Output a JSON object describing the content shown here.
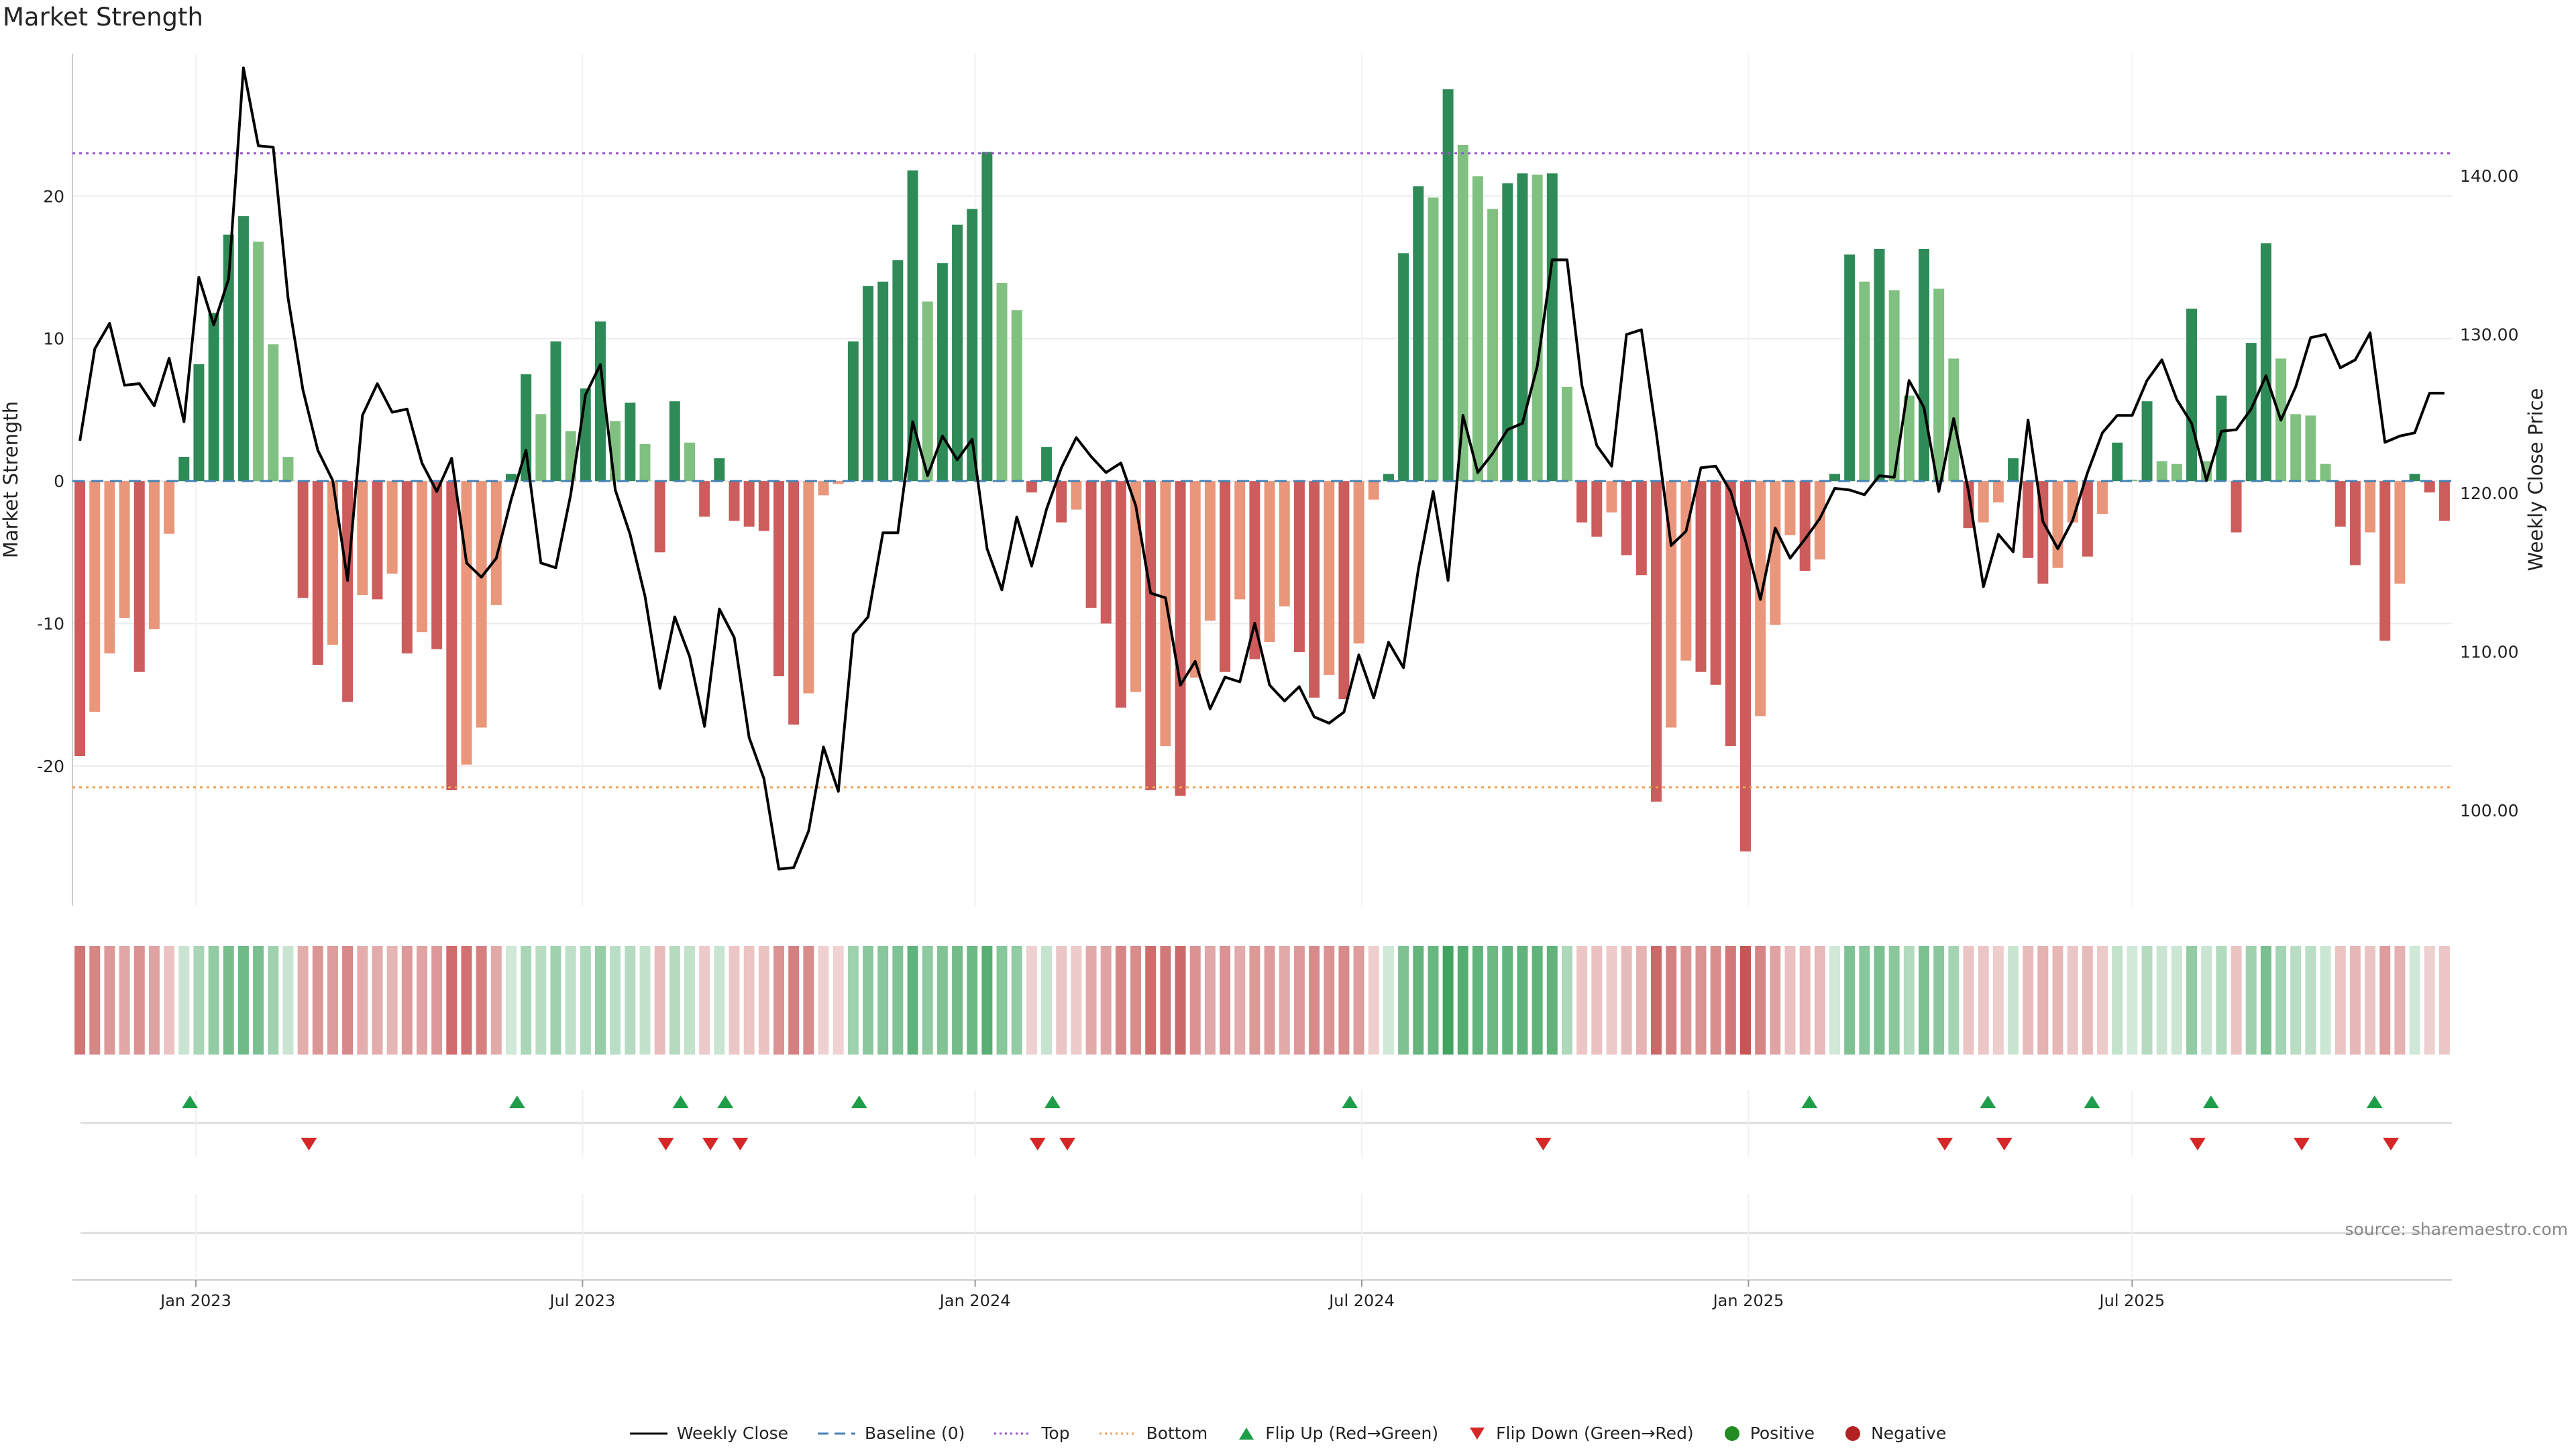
{
  "chart_data": {
    "type": "bar",
    "title": "Market Strength",
    "ylabel_left": "Market Strength",
    "ylabel_right": "Weekly Close Price",
    "source": "source: sharemaestro.com",
    "ylim_left": [
      -29.8,
      30
    ],
    "ylim_right": [
      94,
      147.7
    ],
    "left_ticks": [
      20,
      10,
      0,
      -10,
      -20
    ],
    "left_tick_labels": [
      "20",
      "10",
      "0",
      "-10",
      "-20"
    ],
    "right_ticks": [
      140,
      130,
      120,
      110,
      100
    ],
    "right_tick_labels": [
      "140.00",
      "130.00",
      "120.00",
      "110.00",
      "100.00"
    ],
    "top_line": 23.0,
    "bottom_line": -21.5,
    "baseline": 0,
    "x_tick_labels": [
      "Jan 2023",
      "Jul 2023",
      "Jan 2024",
      "Jul 2024",
      "Jan 2025",
      "Jul 2025"
    ],
    "x_tick_weeks": [
      7.8,
      33.8,
      60.2,
      86.2,
      112.2,
      138.0
    ],
    "strength": [
      -19.3,
      -16.2,
      -12.1,
      -9.6,
      -13.4,
      -10.4,
      -3.7,
      1.7,
      8.2,
      11.8,
      17.3,
      18.6,
      16.8,
      9.6,
      1.7,
      -8.2,
      -12.9,
      -11.5,
      -15.5,
      -8.0,
      -8.3,
      -6.5,
      -12.1,
      -10.6,
      -11.8,
      -21.7,
      -19.9,
      -17.3,
      -8.7,
      0.5,
      7.5,
      4.7,
      9.8,
      3.5,
      6.5,
      11.2,
      4.2,
      5.5,
      2.6,
      -5.0,
      5.6,
      2.7,
      -2.5,
      1.6,
      -2.8,
      -3.2,
      -3.5,
      -13.7,
      -17.1,
      -14.9,
      -1.0,
      -0.2,
      9.8,
      13.7,
      14.0,
      15.5,
      21.8,
      12.6,
      15.3,
      18.0,
      19.1,
      23.1,
      13.9,
      12.0,
      -0.8,
      2.4,
      -2.9,
      -2.0,
      -8.9,
      -10.0,
      -15.9,
      -14.8,
      -21.7,
      -18.6,
      -22.1,
      -13.8,
      -9.8,
      -13.4,
      -8.3,
      -12.5,
      -11.3,
      -8.8,
      -12.0,
      -15.2,
      -13.6,
      -15.3,
      -11.4,
      -1.3,
      0.5,
      16.0,
      20.7,
      19.9,
      27.5,
      23.6,
      21.4,
      19.1,
      20.9,
      21.6,
      21.5,
      21.6,
      6.6,
      -2.9,
      -3.9,
      -2.2,
      -5.2,
      -6.6,
      -22.5,
      -17.3,
      -12.6,
      -13.4,
      -14.3,
      -18.6,
      -26.0,
      -16.5,
      -10.1,
      -3.8,
      -6.3,
      -5.5,
      0.5,
      15.9,
      14.0,
      16.3,
      13.4,
      6.0,
      16.3,
      13.5,
      8.6,
      -3.3,
      -2.9,
      -1.5,
      1.6,
      -5.4,
      -7.2,
      -6.1,
      -2.9,
      -5.3,
      -2.3,
      2.7,
      0.1,
      5.6,
      1.4,
      1.2,
      12.1,
      1.4,
      6.0,
      -3.6,
      9.7,
      16.7,
      8.6,
      4.7,
      4.6,
      1.2,
      -3.2,
      -5.9,
      -3.6,
      -11.2,
      -7.2,
      0.5,
      -0.8,
      -2.8
    ],
    "price": [
      123.3,
      129.1,
      130.7,
      126.8,
      126.9,
      125.5,
      128.5,
      124.5,
      133.6,
      130.6,
      133.5,
      146.8,
      141.9,
      141.8,
      132.3,
      126.5,
      122.7,
      120.8,
      114.5,
      124.9,
      126.9,
      125.1,
      125.3,
      121.9,
      120.1,
      122.2,
      115.6,
      114.7,
      115.9,
      119.6,
      122.7,
      115.6,
      115.3,
      119.9,
      126.2,
      128.1,
      120.2,
      117.4,
      113.5,
      107.7,
      112.2,
      109.7,
      105.3,
      112.7,
      110.9,
      104.6,
      102.0,
      96.3,
      96.4,
      98.7,
      104.0,
      101.2,
      111.1,
      112.2,
      117.5,
      117.5,
      124.5,
      121.1,
      123.6,
      122.1,
      123.4,
      116.5,
      113.9,
      118.5,
      115.4,
      119.0,
      121.6,
      123.5,
      122.3,
      121.3,
      121.9,
      119.2,
      113.7,
      113.4,
      107.9,
      109.4,
      106.4,
      108.4,
      108.1,
      111.8,
      107.9,
      106.9,
      107.8,
      105.9,
      105.5,
      106.2,
      109.8,
      107.1,
      110.6,
      109.0,
      115.2,
      120.1,
      114.5,
      124.9,
      121.3,
      122.5,
      124.0,
      124.4,
      128.0,
      134.7,
      134.7,
      126.8,
      123.0,
      121.7,
      130.0,
      130.3,
      123.8,
      116.7,
      117.6,
      121.6,
      121.7,
      120.1,
      117.0,
      113.3,
      117.8,
      115.9,
      117.1,
      118.4,
      120.3,
      120.2,
      119.9,
      121.1,
      121.0,
      127.1,
      125.4,
      120.1,
      124.7,
      120.1,
      114.1,
      117.4,
      116.3,
      124.6,
      118.2,
      116.5,
      118.3,
      121.3,
      123.8,
      124.9,
      124.9,
      127.1,
      128.4,
      125.9,
      124.4,
      120.8,
      123.9,
      124.0,
      125.3,
      127.4,
      124.6,
      126.7,
      129.8,
      130.0,
      127.9,
      128.4,
      130.1,
      123.2,
      123.6,
      123.8,
      126.3,
      126.3
    ],
    "heat_strip": [
      -19.3,
      -16.2,
      -12.1,
      -9.6,
      -13.4,
      -10.4,
      -3.7,
      1.7,
      8.2,
      11.8,
      17.3,
      18.6,
      16.8,
      9.6,
      1.7,
      -8.2,
      -12.9,
      -11.5,
      -15.5,
      -8.0,
      -8.3,
      -6.5,
      -12.1,
      -10.6,
      -11.8,
      -21.7,
      -19.9,
      -17.3,
      -8.7,
      0.5,
      7.5,
      4.7,
      9.8,
      3.5,
      6.5,
      11.2,
      4.2,
      5.5,
      2.6,
      -5.0,
      5.6,
      2.7,
      -2.5,
      1.6,
      -2.8,
      -3.2,
      -3.5,
      -13.7,
      -17.1,
      -14.9,
      -1.0,
      -0.2,
      9.8,
      13.7,
      14.0,
      15.5,
      21.8,
      12.6,
      15.3,
      18.0,
      19.1,
      23.1,
      13.9,
      12.0,
      -0.8,
      2.4,
      -2.9,
      -2.0,
      -8.9,
      -10.0,
      -15.9,
      -14.8,
      -21.7,
      -18.6,
      -22.1,
      -13.8,
      -9.8,
      -13.4,
      -8.3,
      -12.5,
      -11.3,
      -8.8,
      -12.0,
      -15.2,
      -13.6,
      -15.3,
      -11.4,
      -1.3,
      0.5,
      16.0,
      20.7,
      19.9,
      27.5,
      23.6,
      21.4,
      19.1,
      20.9,
      21.6,
      21.5,
      21.6,
      6.6,
      -2.9,
      -3.9,
      -2.2,
      -5.2,
      -6.6,
      -22.5,
      -17.3,
      -12.6,
      -13.4,
      -14.3,
      -18.6,
      -26.0,
      -16.5,
      -10.1,
      -3.8,
      -6.3,
      -5.5,
      0.5,
      15.9,
      14.0,
      16.3,
      13.4,
      6.0,
      16.3,
      13.5,
      8.6,
      -3.3,
      -2.9,
      -1.5,
      1.6,
      -5.4,
      -7.2,
      -6.1,
      -2.9,
      -5.3,
      -2.3,
      2.7,
      0.1,
      5.6,
      1.4,
      1.2,
      12.1,
      1.4,
      6.0,
      -3.6,
      9.7,
      16.7,
      8.6,
      4.7,
      4.6,
      1.2,
      -3.2,
      -5.9,
      -3.6,
      -11.2,
      -7.2,
      0.5,
      -0.8,
      -2.8
    ],
    "flip_up_weeks": [
      7.4,
      29.4,
      40.4,
      43.4,
      52.4,
      65.4,
      85.4,
      116.3,
      128.3,
      135.3,
      143.3,
      154.3
    ],
    "flip_down_weeks": [
      15.4,
      39.4,
      42.4,
      44.4,
      64.4,
      66.4,
      98.4,
      125.4,
      129.4,
      142.4,
      149.4,
      155.4
    ],
    "colors": {
      "strong_green": "#2e8b57",
      "light_green": "#80c080",
      "strong_red": "#cd5c5c",
      "light_red": "#e9967a",
      "price_line": "#000000",
      "top_line": "#9b4fd1",
      "bottom_line": "#f2a055",
      "baseline": "#4682b4",
      "flip_up": "#1e9e48",
      "flip_down": "#d62728",
      "positive": "#228b22",
      "negative": "#b22222"
    }
  },
  "legend": [
    {
      "label": "Weekly Close",
      "kind": "line"
    },
    {
      "label": "Baseline (0)",
      "kind": "dash"
    },
    {
      "label": "Top",
      "kind": "dot-purple"
    },
    {
      "label": "Bottom",
      "kind": "dot-orange"
    },
    {
      "label": "Flip Up (Red→Green)",
      "kind": "tri-up"
    },
    {
      "label": "Flip Down (Green→Red)",
      "kind": "tri-down"
    },
    {
      "label": "Positive",
      "kind": "circle-green"
    },
    {
      "label": "Negative",
      "kind": "circle-red"
    }
  ]
}
